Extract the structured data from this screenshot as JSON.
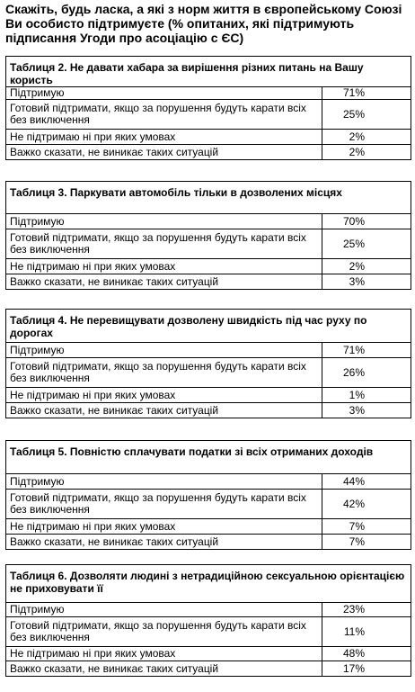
{
  "heading": "Скажіть, будь ласка, а які з норм життя в європейському Союзі Ви особисто підтримуєте (% опитаних, які підтримують підписання Угоди про асоціацію с ЄС)",
  "tables": [
    {
      "title": "Таблиця 2. Не давати хабара за вирішення різних питань на Вашу користь",
      "rows": [
        {
          "label": "Підтримую",
          "value": "71%"
        },
        {
          "label": "Готовий підтримати, якщо за порушення будуть карати всіх без виключення",
          "value": "25%"
        },
        {
          "label": "Не підтримаю ні при яких умовах",
          "value": "2%"
        },
        {
          "label": "Важко сказати, не виникає таких ситуацій",
          "value": "2%"
        }
      ]
    },
    {
      "title": "Таблиця 3. Паркувати автомобіль тільки в дозволених місцях",
      "rows": [
        {
          "label": "Підтримую",
          "value": "70%"
        },
        {
          "label": "Готовий підтримати, якщо за порушення будуть карати всіх без виключення",
          "value": "25%"
        },
        {
          "label": "Не підтримаю ні при яких умовах",
          "value": "2%"
        },
        {
          "label": "Важко сказати, не виникає таких ситуацій",
          "value": "3%"
        }
      ]
    },
    {
      "title": "Таблиця 4. Не перевищувати дозволену швидкість під час руху по дорогах",
      "rows": [
        {
          "label": "Підтримую",
          "value": "71%"
        },
        {
          "label": "Готовий підтримати, якщо за порушення будуть карати всіх без виключення",
          "value": "26%"
        },
        {
          "label": "Не підтримаю ні при яких умовах",
          "value": "1%"
        },
        {
          "label": "Важко сказати, не виникає таких ситуацій",
          "value": "3%"
        }
      ]
    },
    {
      "title": "Таблиця 5. Повністю сплачувати податки зі всіх отриманих доходів",
      "rows": [
        {
          "label": "Підтримую",
          "value": "44%"
        },
        {
          "label": "Готовий підтримати, якщо за порушення будуть карати всіх без виключення",
          "value": "42%"
        },
        {
          "label": "Не підтримаю ні при яких умовах",
          "value": "7%"
        },
        {
          "label": "Важко сказати, не виникає таких ситуацій",
          "value": "7%"
        }
      ]
    },
    {
      "title": "Таблиця 6. Дозволяти людині з нетрадиційною сексуальною орієнтацією не приховувати її",
      "rows": [
        {
          "label": "Підтримую",
          "value": "23%"
        },
        {
          "label": "Готовий підтримати, якщо за порушення будуть карати всіх без виключення",
          "value": "11%"
        },
        {
          "label": "Не підтримаю ні при яких умовах",
          "value": "48%"
        },
        {
          "label": "Важко сказати, не виникає таких ситуацій",
          "value": "17%"
        }
      ]
    }
  ]
}
